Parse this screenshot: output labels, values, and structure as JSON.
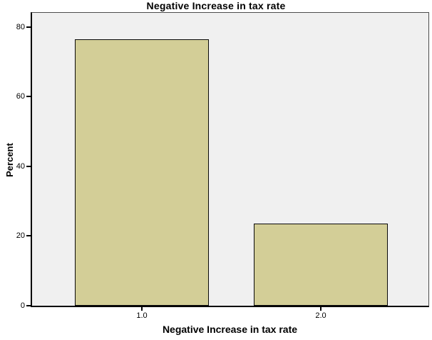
{
  "chart_data": {
    "type": "bar",
    "title": "Negative Increase in tax rate",
    "xlabel": "Negative Increase in tax rate",
    "ylabel": "Percent",
    "categories": [
      "1.0",
      "2.0"
    ],
    "values": [
      76.5,
      23.5
    ],
    "yticks": [
      0,
      20,
      40,
      60,
      80
    ],
    "ylim": [
      0,
      84
    ],
    "grid": false,
    "legend": "none",
    "colors": {
      "bar_fill": "#D3CE97",
      "bar_border": "#0A0A0A",
      "plot_background": "#F0F0F0",
      "frame": "#4D4D4D",
      "axis_line": "#000000",
      "text": "#000000",
      "page_background": "#FFFFFF"
    }
  }
}
